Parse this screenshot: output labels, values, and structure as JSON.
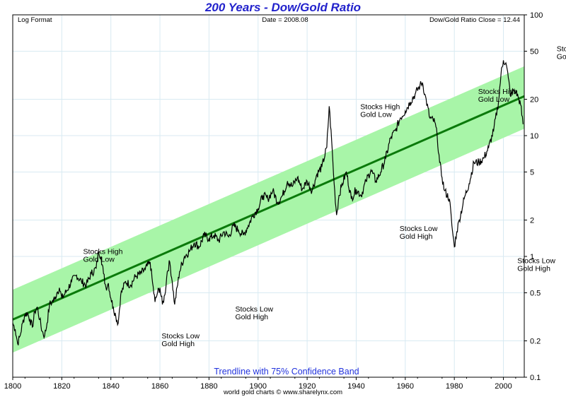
{
  "chart_data": {
    "type": "line",
    "title": "200 Years - Dow/Gold Ratio",
    "header_left": "Log Format",
    "header_center": "Date = 2008.08",
    "header_right": "Dow/Gold Ratio Close = 12.44",
    "band_label": "Trendline with 75% Confidence Band",
    "footer": "world gold charts © www.sharelynx.com",
    "y_scale": "log",
    "xlim": [
      1800,
      2008.5
    ],
    "ylim": [
      0.1,
      100
    ],
    "x_ticks": [
      1800,
      1820,
      1840,
      1860,
      1880,
      1900,
      1920,
      1940,
      1960,
      1980,
      2000
    ],
    "y_ticks": [
      0.1,
      0.2,
      0.5,
      1,
      2,
      5,
      10,
      20,
      50,
      100
    ],
    "grid": true,
    "colors": {
      "title": "#2222cc",
      "band_label": "#2233dd",
      "band": "#a8f5a8",
      "trend": "#0b7a0b",
      "series": "#000000",
      "grid": "#d8eaf2"
    },
    "trendline": {
      "x": [
        1800,
        2008.5
      ],
      "y": [
        0.3,
        21.2
      ]
    },
    "band_upper": {
      "x": [
        1800,
        2008.5
      ],
      "y": [
        0.53,
        37.5
      ]
    },
    "band_lower": {
      "x": [
        1800,
        2008.5
      ],
      "y": [
        0.16,
        11.4
      ]
    },
    "series": [
      {
        "x": [
          1800,
          1801,
          1802,
          1803,
          1804,
          1805,
          1806,
          1807,
          1808,
          1809,
          1810,
          1811,
          1812,
          1813,
          1814,
          1815,
          1816,
          1817,
          1818,
          1819,
          1820,
          1822,
          1824,
          1826,
          1828,
          1830,
          1832,
          1834,
          1835,
          1836,
          1837,
          1838,
          1839,
          1840,
          1841,
          1842,
          1843,
          1844,
          1846,
          1848,
          1850,
          1852,
          1854,
          1856,
          1857,
          1858,
          1859,
          1860,
          1861,
          1862,
          1863,
          1864,
          1865,
          1866,
          1868,
          1870,
          1872,
          1874,
          1876,
          1878,
          1880,
          1882,
          1884,
          1886,
          1888,
          1890,
          1892,
          1894,
          1896,
          1898,
          1900,
          1902,
          1904,
          1906,
          1908,
          1910,
          1912,
          1914,
          1916,
          1918,
          1920,
          1922,
          1924,
          1926,
          1928,
          1929,
          1930,
          1931,
          1932,
          1933,
          1934,
          1936,
          1938,
          1940,
          1942,
          1944,
          1946,
          1948,
          1950,
          1952,
          1954,
          1956,
          1958,
          1960,
          1962,
          1964,
          1966,
          1967,
          1968,
          1970,
          1972,
          1973,
          1974,
          1975,
          1976,
          1978,
          1979,
          1980,
          1981,
          1982,
          1984,
          1986,
          1988,
          1990,
          1992,
          1994,
          1996,
          1998,
          1999,
          2000,
          2001,
          2002,
          2003,
          2004,
          2005,
          2006,
          2007,
          2008
        ],
        "y": [
          0.28,
          0.25,
          0.19,
          0.22,
          0.28,
          0.33,
          0.34,
          0.3,
          0.26,
          0.35,
          0.38,
          0.3,
          0.24,
          0.22,
          0.28,
          0.4,
          0.42,
          0.44,
          0.5,
          0.55,
          0.45,
          0.52,
          0.62,
          0.7,
          0.62,
          0.58,
          0.72,
          0.8,
          1.1,
          1.0,
          0.72,
          0.55,
          0.6,
          0.45,
          0.38,
          0.32,
          0.28,
          0.48,
          0.62,
          0.58,
          0.68,
          0.72,
          0.78,
          0.9,
          0.6,
          0.42,
          0.5,
          0.55,
          0.4,
          0.48,
          0.75,
          0.9,
          0.62,
          0.4,
          0.75,
          1.0,
          1.1,
          1.3,
          1.2,
          1.5,
          1.4,
          1.5,
          1.35,
          1.6,
          1.45,
          1.8,
          1.65,
          1.5,
          1.8,
          2.2,
          2.5,
          3.2,
          3.0,
          3.5,
          2.8,
          3.2,
          4.2,
          3.8,
          4.5,
          3.6,
          4.2,
          3.5,
          4.8,
          5.5,
          8.0,
          17.5,
          9.0,
          4.0,
          2.2,
          3.2,
          3.8,
          5.0,
          3.0,
          3.6,
          3.2,
          4.2,
          5.2,
          4.2,
          5.0,
          6.5,
          9.5,
          11.0,
          14.0,
          16.0,
          19.0,
          22.0,
          26.0,
          27.5,
          22.0,
          14.0,
          13.0,
          10.0,
          6.0,
          4.5,
          3.5,
          3.0,
          1.8,
          1.2,
          1.6,
          2.0,
          3.0,
          4.0,
          6.0,
          6.0,
          6.5,
          8.0,
          11.0,
          19.0,
          32.0,
          42.0,
          40.0,
          30.0,
          21.0,
          24.0,
          23.0,
          21.0,
          18.0,
          12.44
        ]
      }
    ],
    "annotations": [
      {
        "x": 1801,
        "y": 1.05,
        "label1": "Stocks High",
        "label2": "Gold Low"
      },
      {
        "x": 1833,
        "y": 0.21,
        "label1": "Stocks Low",
        "label2": "Gold High"
      },
      {
        "x": 1914,
        "y": 16.6,
        "label1": "Stocks High",
        "label2": "Gold Low"
      },
      {
        "x": 1863,
        "y": 0.35,
        "label1": "Stocks Low",
        "label2": "Gold High"
      },
      {
        "x": 1962,
        "y": 22.1,
        "label1": "Stocks High",
        "label2": "Gold Low"
      },
      {
        "x": 1930,
        "y": 1.62,
        "label1": "Stocks Low",
        "label2": "Gold High"
      },
      {
        "x": 1994,
        "y": 50.0,
        "label1": "Stocks High",
        "label2": "Gold Low"
      },
      {
        "x": 1978,
        "y": 0.88,
        "label1": "Stocks Low",
        "label2": "Gold High"
      }
    ]
  }
}
